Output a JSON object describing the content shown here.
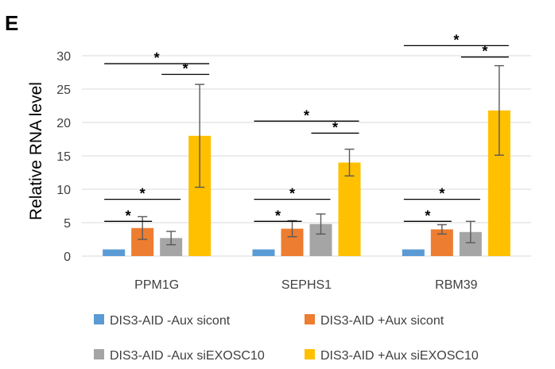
{
  "panel_label": "E",
  "chart_data": {
    "type": "bar",
    "title": "",
    "xlabel": "",
    "ylabel": "Relative RNA level",
    "ylim": [
      0,
      30
    ],
    "yticks": [
      0,
      5,
      10,
      15,
      20,
      25,
      30
    ],
    "grid": "horizontal",
    "legend_position": "bottom",
    "categories": [
      "PPM1G",
      "SEPHS1",
      "RBM39"
    ],
    "series": [
      {
        "name": "DIS3-AID -Aux sicont",
        "color": "#5b9bd5",
        "values": [
          1.0,
          1.0,
          1.0
        ],
        "errors": [
          0,
          0,
          0
        ]
      },
      {
        "name": "DIS3-AID +Aux sicont",
        "color": "#ed7d31",
        "values": [
          4.2,
          4.1,
          4.0
        ],
        "errors": [
          1.7,
          1.2,
          0.7
        ]
      },
      {
        "name": "DIS3-AID -Aux siEXOSC10",
        "color": "#a5a5a5",
        "values": [
          2.7,
          4.8,
          3.6
        ],
        "errors": [
          1.0,
          1.5,
          1.6
        ]
      },
      {
        "name": "DIS3-AID +Aux siEXOSC10",
        "color": "#ffc000",
        "values": [
          18.0,
          14.0,
          21.8
        ],
        "errors": [
          7.7,
          2.0,
          6.7
        ]
      }
    ],
    "significance": [
      {
        "category": 0,
        "from": 0,
        "to": 1,
        "level": 5.2,
        "label": "*"
      },
      {
        "category": 0,
        "from": 0,
        "to": 2,
        "level": 8.5,
        "label": "*"
      },
      {
        "category": 0,
        "from": 2,
        "to": 3,
        "level": 27.2,
        "label": "*"
      },
      {
        "category": 0,
        "from": 0,
        "to": 3,
        "level": 28.8,
        "label": "*"
      },
      {
        "category": 1,
        "from": 0,
        "to": 1,
        "level": 5.2,
        "label": "*"
      },
      {
        "category": 1,
        "from": 0,
        "to": 2,
        "level": 8.5,
        "label": "*"
      },
      {
        "category": 1,
        "from": 2,
        "to": 3,
        "level": 18.4,
        "label": "*"
      },
      {
        "category": 1,
        "from": 0,
        "to": 3,
        "level": 20.2,
        "label": "*"
      },
      {
        "category": 2,
        "from": 0,
        "to": 1,
        "level": 5.2,
        "label": "*"
      },
      {
        "category": 2,
        "from": 0,
        "to": 2,
        "level": 8.5,
        "label": "*"
      },
      {
        "category": 2,
        "from": 2,
        "to": 3,
        "level": 29.8,
        "label": "*"
      },
      {
        "category": 2,
        "from": 0,
        "to": 3,
        "level": 31.5,
        "label": "*"
      }
    ]
  }
}
